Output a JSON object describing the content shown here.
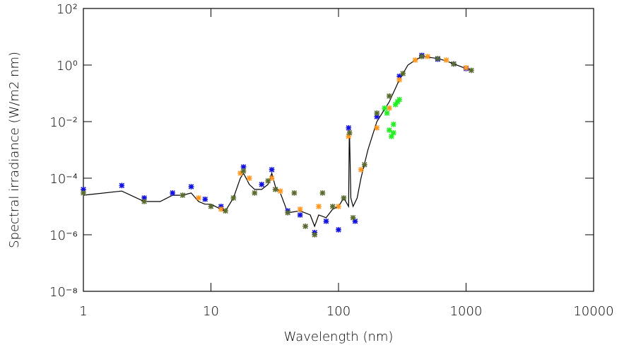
{
  "chart_data": {
    "type": "scatter",
    "x_label": "Wavelength (nm)",
    "y_label": "Spectral irradiance (W/m2 nm)",
    "xlog": true,
    "ylog": true,
    "xlim": [
      1,
      10000
    ],
    "ylim": [
      1e-08,
      100
    ],
    "xticks": [
      1,
      10,
      100,
      1000,
      10000
    ],
    "yticks": [
      {
        "value": 100,
        "label": "10²"
      },
      {
        "value": 1,
        "label": "10⁰"
      },
      {
        "value": 0.01,
        "label": "10⁻²"
      },
      {
        "value": 0.0001,
        "label": "10⁻⁴"
      },
      {
        "value": 1e-06,
        "label": "10⁻⁶"
      },
      {
        "value": 1e-08,
        "label": "10⁻⁸"
      }
    ],
    "line": {
      "color": "#000000",
      "x": [
        1,
        2,
        3,
        4,
        5,
        6,
        7,
        8,
        9,
        10,
        12,
        13,
        15,
        17,
        18,
        20,
        22,
        25,
        28,
        30,
        32,
        35,
        40,
        50,
        60,
        65,
        70,
        80,
        90,
        100,
        110,
        120,
        121.6,
        122,
        125,
        130,
        140,
        150,
        170,
        200,
        250,
        300,
        350,
        400,
        450,
        500,
        600,
        700,
        800,
        900,
        1000,
        1100
      ],
      "values": [
        2.5e-05,
        3.5e-05,
        1.5e-05,
        1.5e-05,
        2.5e-05,
        2.5e-05,
        3e-05,
        1.5e-05,
        1.2e-05,
        1.2e-05,
        8e-06,
        7e-06,
        2e-05,
        0.0001,
        0.00015,
        6e-05,
        4e-05,
        4e-05,
        6e-05,
        0.00015,
        5e-05,
        3e-05,
        6e-06,
        7e-06,
        5e-06,
        2e-06,
        5e-06,
        4e-06,
        8e-06,
        1e-05,
        2e-05,
        1e-05,
        0.005,
        0.004,
        2e-05,
        1e-05,
        2e-05,
        0.0001,
        0.001,
        0.01,
        0.05,
        0.3,
        1,
        1.5,
        2,
        1.9,
        1.7,
        1.4,
        1.1,
        0.9,
        0.75,
        0.65
      ]
    },
    "series": [
      {
        "color": "#1010e0",
        "x": [
          1,
          2,
          3,
          5,
          7,
          9,
          12,
          18,
          25,
          30,
          40,
          50,
          65,
          80,
          100,
          120,
          135,
          200,
          300,
          450,
          600,
          800,
          1000
        ],
        "values": [
          4e-05,
          5.5e-05,
          2e-05,
          3e-05,
          5e-05,
          1.8e-05,
          1e-05,
          0.00025,
          6e-05,
          0.0002,
          7e-06,
          5e-06,
          1.2e-06,
          3e-06,
          1.5e-06,
          0.006,
          3e-06,
          0.015,
          0.4,
          2.2,
          1.6,
          1.1,
          0.75
        ]
      },
      {
        "color": "#ff9922",
        "x": [
          8,
          12,
          17,
          20,
          30,
          35,
          50,
          70,
          100,
          120,
          150,
          200,
          250,
          300,
          400,
          500,
          700,
          1000
        ],
        "values": [
          2e-05,
          8e-06,
          0.00015,
          0.0001,
          0.0001,
          3.5e-05,
          8e-06,
          1e-05,
          1e-05,
          0.003,
          0.0002,
          0.006,
          0.03,
          0.3,
          1.5,
          2,
          1.5,
          0.8
        ]
      },
      {
        "color": "#5a6b30",
        "x": [
          1,
          3,
          6,
          10,
          13,
          15,
          18,
          22,
          28,
          32,
          40,
          45,
          55,
          65,
          75,
          90,
          110,
          122,
          130,
          160,
          200,
          250,
          320,
          450,
          600,
          800,
          1100
        ],
        "values": [
          3e-05,
          1.5e-05,
          2.5e-05,
          1e-05,
          7e-06,
          2e-05,
          0.00018,
          3e-05,
          8e-05,
          4e-05,
          6e-06,
          3e-05,
          2e-06,
          1e-06,
          3e-05,
          1e-05,
          2e-05,
          0.004,
          4e-06,
          0.0003,
          0.02,
          0.08,
          0.5,
          2,
          1.7,
          1.1,
          0.65
        ]
      },
      {
        "color": "#22ee22",
        "x": [
          230,
          240,
          250,
          260,
          270,
          280,
          290,
          300,
          270
        ],
        "values": [
          0.03,
          0.02,
          0.005,
          0.003,
          0.008,
          0.04,
          0.05,
          0.06,
          0.004
        ]
      }
    ]
  }
}
